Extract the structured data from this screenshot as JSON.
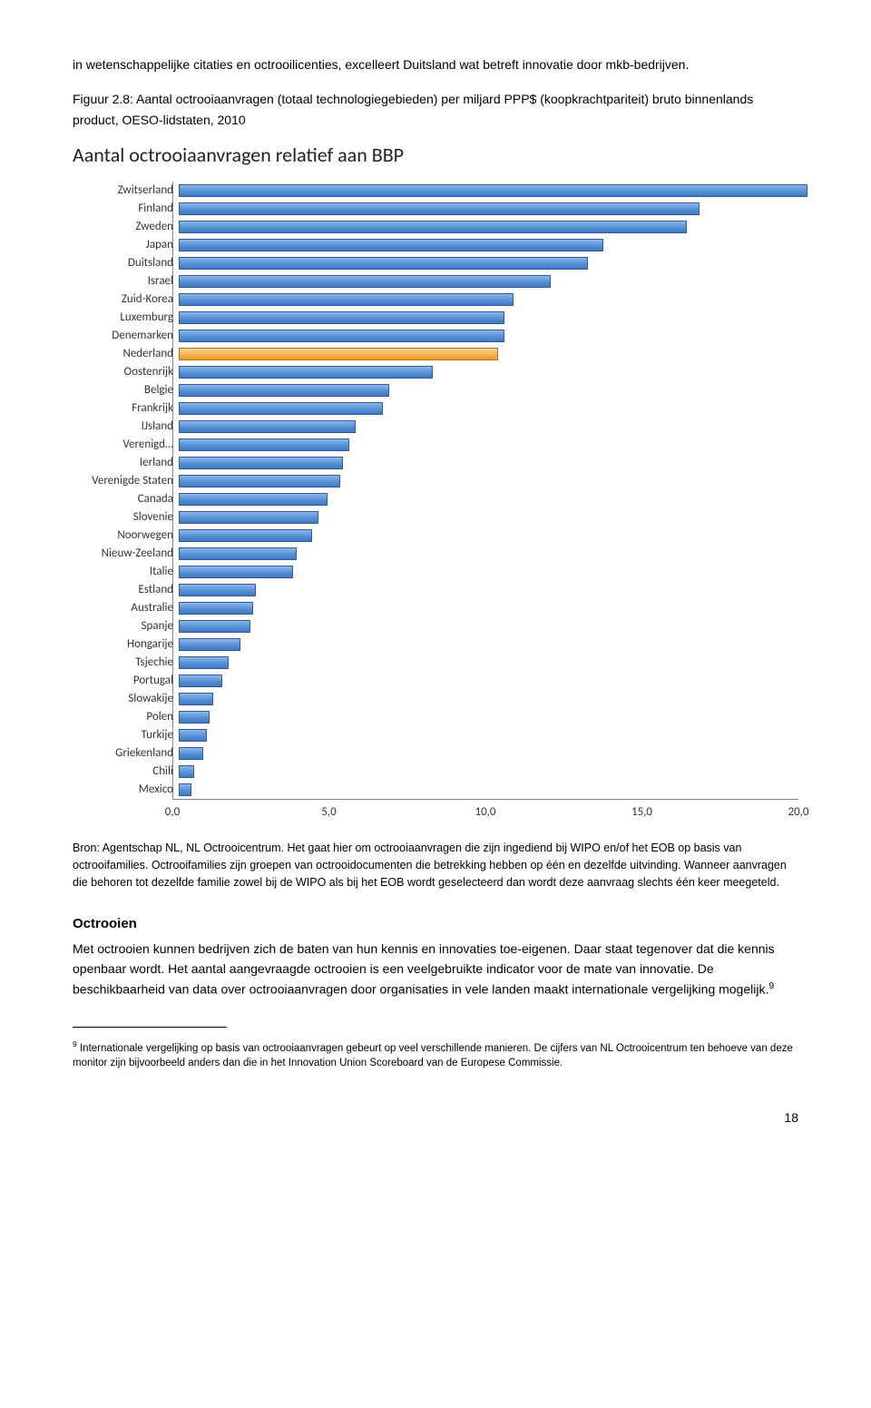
{
  "intro_text": "in wetenschappelijke citaties en octrooilicenties, excelleert Duitsland wat betreft innovatie door mkb-bedrijven.",
  "figure_caption": "Figuur 2.8: Aantal octrooiaanvragen (totaal technologiegebieden) per miljard PPP$ (koopkrachtpariteit) bruto binnenlands product, OESO-lidstaten, 2010",
  "chart": {
    "type": "bar-horizontal",
    "title": "Aantal octrooiaanvragen relatief aan BBP",
    "xlim": [
      0,
      20
    ],
    "xticks": [
      "0,0",
      "5,0",
      "10,0",
      "15,0",
      "20,0"
    ],
    "xtick_values": [
      0,
      5,
      10,
      15,
      20
    ],
    "bar_default_colors": {
      "blue_grad": [
        "#8db7e8",
        "#5a93d6",
        "#3f79c2"
      ],
      "blue_border": "#2f5d99",
      "orange_grad": [
        "#fbd39a",
        "#f5b456",
        "#e99a2b"
      ],
      "orange_border": "#b16f14"
    },
    "label_fontsize": 13,
    "title_fontsize": 22,
    "categories": [
      {
        "label": "Zwitserland",
        "value": 20.3,
        "color": "blue"
      },
      {
        "label": "Finland",
        "value": 16.8,
        "color": "blue"
      },
      {
        "label": "Zweden",
        "value": 16.4,
        "color": "blue"
      },
      {
        "label": "Japan",
        "value": 13.7,
        "color": "blue"
      },
      {
        "label": "Duitsland",
        "value": 13.2,
        "color": "blue"
      },
      {
        "label": "Israel",
        "value": 12.0,
        "color": "blue"
      },
      {
        "label": "Zuid-Korea",
        "value": 10.8,
        "color": "blue"
      },
      {
        "label": "Luxemburg",
        "value": 10.5,
        "color": "blue"
      },
      {
        "label": "Denemarken",
        "value": 10.5,
        "color": "blue"
      },
      {
        "label": "Nederland",
        "value": 10.3,
        "color": "orange"
      },
      {
        "label": "Oostenrijk",
        "value": 8.2,
        "color": "blue"
      },
      {
        "label": "Belgie",
        "value": 6.8,
        "color": "blue"
      },
      {
        "label": "Frankrijk",
        "value": 6.6,
        "color": "blue"
      },
      {
        "label": "IJsland",
        "value": 5.7,
        "color": "blue"
      },
      {
        "label": "Verenigd…",
        "value": 5.5,
        "color": "blue"
      },
      {
        "label": "Ierland",
        "value": 5.3,
        "color": "blue"
      },
      {
        "label": "Verenigde Staten",
        "value": 5.2,
        "color": "blue"
      },
      {
        "label": "Canada",
        "value": 4.8,
        "color": "blue"
      },
      {
        "label": "Slovenie",
        "value": 4.5,
        "color": "blue"
      },
      {
        "label": "Noorwegen",
        "value": 4.3,
        "color": "blue"
      },
      {
        "label": "Nieuw-Zeeland",
        "value": 3.8,
        "color": "blue"
      },
      {
        "label": "Italie",
        "value": 3.7,
        "color": "blue"
      },
      {
        "label": "Estland",
        "value": 2.5,
        "color": "blue"
      },
      {
        "label": "Australie",
        "value": 2.4,
        "color": "blue"
      },
      {
        "label": "Spanje",
        "value": 2.3,
        "color": "blue"
      },
      {
        "label": "Hongarije",
        "value": 2.0,
        "color": "blue"
      },
      {
        "label": "Tsjechie",
        "value": 1.6,
        "color": "blue"
      },
      {
        "label": "Portugal",
        "value": 1.4,
        "color": "blue"
      },
      {
        "label": "Slowakije",
        "value": 1.1,
        "color": "blue"
      },
      {
        "label": "Polen",
        "value": 1.0,
        "color": "blue"
      },
      {
        "label": "Turkije",
        "value": 0.9,
        "color": "blue"
      },
      {
        "label": "Griekenland",
        "value": 0.8,
        "color": "blue"
      },
      {
        "label": "Chili",
        "value": 0.5,
        "color": "blue"
      },
      {
        "label": "Mexico",
        "value": 0.4,
        "color": "blue"
      }
    ]
  },
  "source_text": "Bron: Agentschap NL, NL Octrooicentrum. Het gaat hier om octrooiaanvragen die zijn ingediend bij WIPO en/of het EOB op basis van octrooifamilies. Octrooifamilies zijn groepen van octrooidocumenten die betrekking hebben op één en dezelfde uitvinding. Wanneer aanvragen die behoren tot dezelfde familie zowel bij de WIPO als bij het EOB wordt geselecteerd dan wordt deze aanvraag slechts één keer meegeteld.",
  "section_heading": "Octrooien",
  "section_text_1": "Met octrooien kunnen bedrijven zich de baten van hun kennis en innovaties toe-eigenen. Daar staat tegenover dat die kennis openbaar wordt. Het aantal aangevraagde octrooien is een veelgebruikte indicator voor de mate van innovatie. De beschikbaarheid van data over octrooiaanvragen door organisaties in vele landen maakt internationale vergelijking mogelijk.",
  "footnote_marker": "9",
  "footnote_text": " Internationale vergelijking op basis van octrooiaanvragen gebeurt op veel verschillende manieren. De cijfers van NL Octrooicentrum ten behoeve van deze monitor zijn bijvoorbeeld anders dan die in het Innovation Union Scoreboard van de Europese Commissie.",
  "page_number": "18"
}
